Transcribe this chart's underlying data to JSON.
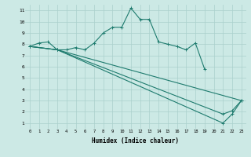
{
  "bg_color": "#cce9e5",
  "grid_color": "#aad0cc",
  "line_color": "#1e7b6e",
  "xlabel": "Humidex (Indice chaleur)",
  "xlim": [
    -0.5,
    23.5
  ],
  "ylim": [
    0.5,
    11.5
  ],
  "xticks": [
    0,
    1,
    2,
    3,
    4,
    5,
    6,
    7,
    8,
    9,
    10,
    11,
    12,
    13,
    14,
    15,
    16,
    17,
    18,
    19,
    20,
    21,
    22,
    23
  ],
  "yticks": [
    1,
    2,
    3,
    4,
    5,
    6,
    7,
    8,
    9,
    10,
    11
  ],
  "figsize": [
    3.2,
    2.0
  ],
  "dpi": 100,
  "line1_x": [
    0,
    1,
    2,
    3,
    4,
    5,
    6,
    7,
    8,
    9,
    10,
    11,
    12,
    13,
    14,
    15,
    16,
    17,
    18,
    19
  ],
  "line1_y": [
    7.8,
    8.1,
    8.2,
    7.5,
    7.5,
    7.7,
    7.5,
    8.1,
    9.0,
    9.5,
    9.5,
    11.2,
    10.2,
    10.2,
    8.2,
    8.0,
    7.8,
    7.5,
    8.1,
    5.8
  ],
  "line2_x": [
    0,
    3,
    23
  ],
  "line2_y": [
    7.8,
    7.5,
    3.0
  ],
  "line3_x": [
    0,
    3,
    21,
    22,
    23
  ],
  "line3_y": [
    7.8,
    7.5,
    1.0,
    1.8,
    3.0
  ],
  "line4_x": [
    0,
    3,
    21,
    22,
    23
  ],
  "line4_y": [
    7.8,
    7.5,
    1.8,
    2.1,
    3.0
  ]
}
